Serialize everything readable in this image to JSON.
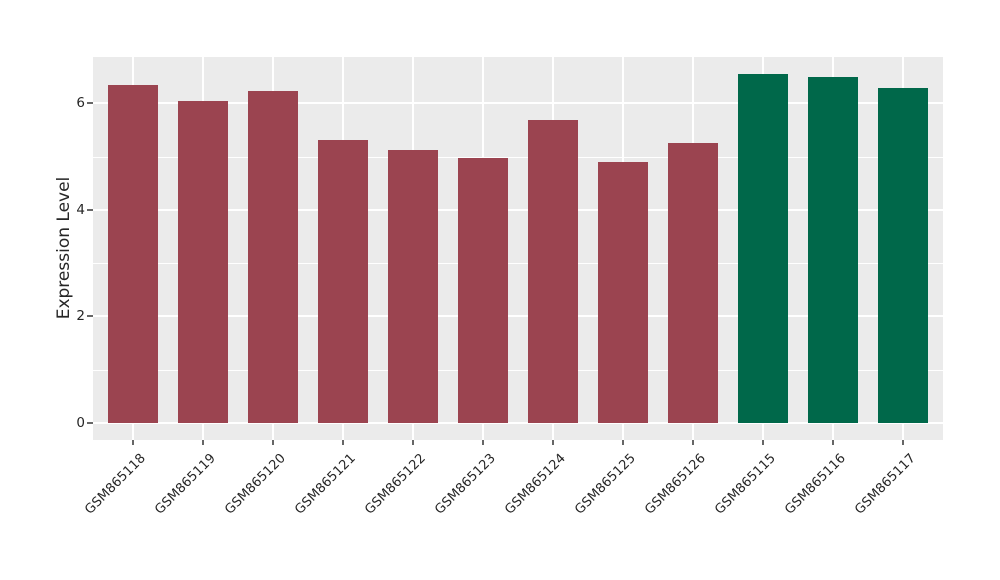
{
  "chart_data": {
    "type": "bar",
    "title": "",
    "xlabel": "",
    "ylabel": "Expression Level",
    "categories": [
      "GSM865118",
      "GSM865119",
      "GSM865120",
      "GSM865121",
      "GSM865122",
      "GSM865123",
      "GSM865124",
      "GSM865125",
      "GSM865126",
      "GSM865115",
      "GSM865116",
      "GSM865117"
    ],
    "values": [
      6.35,
      6.05,
      6.22,
      5.31,
      5.12,
      4.98,
      5.68,
      4.89,
      5.26,
      6.55,
      6.49,
      6.28
    ],
    "bar_colors": [
      "#9B4450",
      "#9B4450",
      "#9B4450",
      "#9B4450",
      "#9B4450",
      "#9B4450",
      "#9B4450",
      "#9B4450",
      "#9B4450",
      "#00684A",
      "#00684A",
      "#00684A"
    ],
    "yticks": [
      0,
      2,
      4,
      6
    ],
    "minor_yticks": [
      1,
      3,
      5
    ],
    "ylim": [
      -0.33,
      6.88
    ],
    "grid": true,
    "legend": "none",
    "panel_background": "#EBEBEB",
    "gridline_color": "#FFFFFF",
    "axis_text_color": "#262626",
    "tick_mark_color": "#666666"
  }
}
